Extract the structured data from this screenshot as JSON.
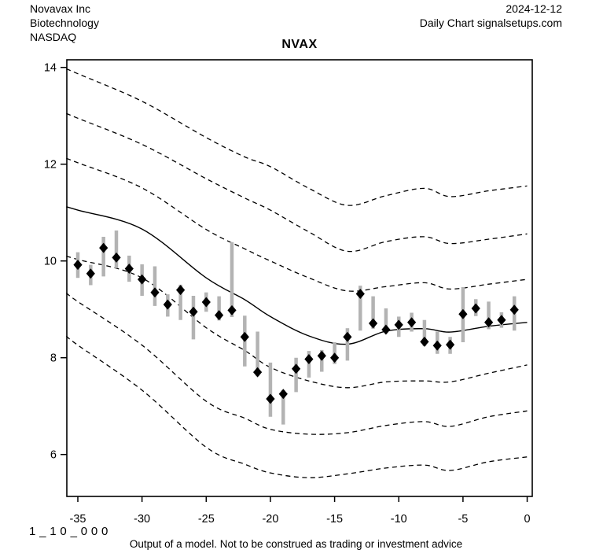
{
  "header": {
    "company": "Novavax Inc",
    "sector": "Biotechnology",
    "exchange": "NASDAQ",
    "date": "2024-12-12",
    "source_line": "Daily Chart signalsetups.com"
  },
  "footer": {
    "model_code": "1_10_000",
    "disclaimer": "Output of a model. Not to be construed as trading or investment advice"
  },
  "chart_data": {
    "type": "line",
    "title": "NVAX",
    "xlabel": "",
    "ylabel": "",
    "x_ticks": [
      -35,
      -30,
      -25,
      -20,
      -15,
      -10,
      -5,
      0
    ],
    "y_ticks": [
      6,
      8,
      10,
      12,
      14
    ],
    "xlim": [
      -35.86,
      0.4
    ],
    "ylim": [
      5.13,
      14.16
    ],
    "grid": false,
    "legend": "none",
    "band_sample_x": [
      -35.9,
      -35,
      -30,
      -25,
      -22,
      -20,
      -17,
      -14,
      -11,
      -8,
      -6,
      -3,
      0
    ],
    "bands": [
      {
        "name": "upper-band-3",
        "style": "dashed",
        "values": [
          13.97,
          13.87,
          13.3,
          12.55,
          12.15,
          11.95,
          11.5,
          11.15,
          11.35,
          11.5,
          11.33,
          11.45,
          11.55
        ]
      },
      {
        "name": "upper-band-2",
        "style": "dashed",
        "values": [
          13.05,
          12.95,
          12.41,
          11.7,
          11.3,
          11.05,
          10.6,
          10.2,
          10.4,
          10.5,
          10.36,
          10.45,
          10.56
        ]
      },
      {
        "name": "upper-band-1",
        "style": "dashed",
        "values": [
          12.12,
          12.03,
          11.51,
          10.65,
          10.25,
          10.0,
          9.65,
          9.38,
          9.47,
          9.55,
          9.42,
          9.52,
          9.62
        ]
      },
      {
        "name": "model-center-line",
        "style": "solid",
        "values": [
          11.12,
          11.05,
          10.66,
          9.65,
          9.2,
          8.85,
          8.45,
          8.28,
          8.55,
          8.6,
          8.53,
          8.65,
          8.73
        ]
      },
      {
        "name": "lower-band-1",
        "style": "dashed",
        "values": [
          10.1,
          10.03,
          9.65,
          8.62,
          8.15,
          7.8,
          7.52,
          7.38,
          7.5,
          7.52,
          7.5,
          7.68,
          7.85
        ]
      },
      {
        "name": "lower-band-2",
        "style": "dashed",
        "values": [
          9.34,
          9.16,
          8.26,
          7.1,
          6.75,
          6.52,
          6.42,
          6.45,
          6.6,
          6.68,
          6.58,
          6.78,
          6.9
        ]
      },
      {
        "name": "lower-band-3",
        "style": "dashed",
        "values": [
          8.45,
          8.26,
          7.33,
          6.15,
          5.8,
          5.62,
          5.52,
          5.6,
          5.72,
          5.78,
          5.67,
          5.85,
          5.95
        ]
      }
    ],
    "prices": {
      "x": [
        -35,
        -34,
        -33,
        -32,
        -31,
        -30,
        -29,
        -28,
        -27,
        -26,
        -25,
        -24,
        -23,
        -22,
        -21,
        -20,
        -19,
        -18,
        -17,
        -16,
        -15,
        -14,
        -13,
        -12,
        -11,
        -10,
        -9,
        -8,
        -7,
        -6,
        -5,
        -4,
        -3,
        -2,
        -1
      ],
      "close": [
        9.92,
        9.74,
        10.27,
        10.07,
        9.84,
        9.62,
        9.35,
        9.1,
        9.4,
        8.95,
        9.15,
        8.88,
        8.98,
        8.43,
        7.7,
        7.15,
        7.25,
        7.77,
        7.97,
        8.04,
        8.0,
        8.43,
        9.32,
        8.71,
        8.58,
        8.68,
        8.73,
        8.33,
        8.25,
        8.27,
        8.9,
        9.02,
        8.73,
        8.78,
        8.99
      ],
      "low": [
        9.65,
        9.5,
        9.68,
        9.85,
        9.57,
        9.28,
        9.07,
        8.85,
        8.78,
        8.38,
        8.95,
        8.77,
        8.84,
        7.82,
        7.62,
        6.78,
        6.62,
        7.29,
        7.59,
        7.71,
        7.87,
        7.94,
        8.56,
        8.6,
        8.51,
        8.43,
        8.54,
        8.24,
        8.08,
        8.08,
        8.32,
        8.86,
        8.59,
        8.62,
        8.56
      ],
      "high": [
        10.18,
        9.92,
        10.5,
        10.63,
        10.11,
        9.93,
        9.89,
        9.31,
        9.51,
        9.28,
        9.35,
        9.27,
        10.39,
        8.87,
        8.54,
        7.9,
        7.33,
        8.0,
        8.14,
        8.16,
        8.32,
        8.61,
        9.49,
        9.27,
        9.02,
        8.85,
        8.93,
        8.78,
        8.54,
        8.43,
        9.46,
        9.21,
        9.16,
        8.94,
        9.27
      ]
    },
    "colors": {
      "line": "#000000",
      "range_bar": "#b3b3b3",
      "diamond": "#000000",
      "background": "#ffffff",
      "text": "#000000"
    }
  }
}
